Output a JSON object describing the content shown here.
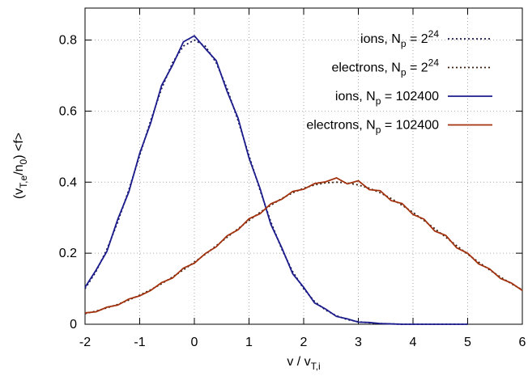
{
  "chart_data": {
    "type": "line",
    "xlabel": "v / v_{T,i}",
    "ylabel": "(v_{T,e}/n_0) <f>",
    "xlim": [
      -2,
      6
    ],
    "ylim": [
      0,
      0.89
    ],
    "xticks": [
      -2,
      -1,
      0,
      1,
      2,
      3,
      4,
      5,
      6
    ],
    "yticks": [
      0,
      0.2,
      0.4,
      0.6,
      0.8
    ],
    "grid": true,
    "legend": "top-right",
    "series": [
      {
        "name": "ions, N_p = 2^{24}",
        "color": "#141450",
        "style": "dotted",
        "x": [
          -2,
          -1.8,
          -1.6,
          -1.4,
          -1.2,
          -1,
          -0.8,
          -0.6,
          -0.4,
          -0.2,
          0,
          0.2,
          0.4,
          0.6,
          0.8,
          1,
          1.2,
          1.4,
          1.6,
          1.8,
          2,
          2.2,
          2.4,
          2.6,
          2.8,
          3,
          3.2,
          3.4,
          3.6,
          3.8,
          4,
          4.2,
          4.4,
          4.6,
          4.8,
          5
        ],
        "values": [
          0.1,
          0.148,
          0.211,
          0.288,
          0.378,
          0.475,
          0.573,
          0.663,
          0.736,
          0.783,
          0.8,
          0.783,
          0.736,
          0.663,
          0.573,
          0.475,
          0.378,
          0.288,
          0.211,
          0.148,
          0.1,
          0.064,
          0.04,
          0.024,
          0.013,
          0.007,
          0.004,
          0.002,
          0.001,
          0,
          0,
          0,
          0,
          0,
          0,
          0
        ]
      },
      {
        "name": "electrons, N_p = 2^{24}",
        "color": "#3a1c0c",
        "style": "dotted",
        "x": [
          -2,
          -1.8,
          -1.6,
          -1.4,
          -1.2,
          -1,
          -0.8,
          -0.6,
          -0.4,
          -0.2,
          0,
          0.2,
          0.4,
          0.6,
          0.8,
          1,
          1.2,
          1.4,
          1.6,
          1.8,
          2,
          2.2,
          2.4,
          2.6,
          2.8,
          3,
          3.2,
          3.4,
          3.6,
          3.8,
          4,
          4.2,
          4.4,
          4.6,
          4.8,
          5,
          5.2,
          5.4,
          5.6,
          5.8,
          6
        ],
        "values": [
          0.03,
          0.037,
          0.046,
          0.056,
          0.068,
          0.082,
          0.097,
          0.114,
          0.133,
          0.153,
          0.175,
          0.197,
          0.221,
          0.245,
          0.269,
          0.292,
          0.315,
          0.335,
          0.354,
          0.37,
          0.383,
          0.392,
          0.398,
          0.4,
          0.398,
          0.392,
          0.383,
          0.37,
          0.354,
          0.335,
          0.315,
          0.292,
          0.269,
          0.245,
          0.221,
          0.197,
          0.175,
          0.153,
          0.133,
          0.114,
          0.097
        ]
      },
      {
        "name": "ions, N_p = 102400",
        "color": "#1c1c8c",
        "style": "solid",
        "x": [
          -2,
          -1.8,
          -1.6,
          -1.4,
          -1.2,
          -1,
          -0.8,
          -0.6,
          -0.4,
          -0.2,
          0,
          0.2,
          0.4,
          0.6,
          0.8,
          1,
          1.2,
          1.4,
          1.6,
          1.8,
          2,
          2.2,
          2.4,
          2.6,
          2.8,
          3,
          3.2,
          3.4,
          3.6,
          3.8,
          4,
          4.2,
          4.4,
          4.6,
          4.8,
          5
        ],
        "values": [
          0.104,
          0.152,
          0.205,
          0.296,
          0.372,
          0.481,
          0.566,
          0.672,
          0.729,
          0.795,
          0.812,
          0.776,
          0.742,
          0.655,
          0.58,
          0.468,
          0.383,
          0.281,
          0.215,
          0.142,
          0.104,
          0.06,
          0.043,
          0.022,
          0.015,
          0.006,
          0.005,
          0.002,
          0.001,
          0,
          0,
          0,
          0,
          0,
          0,
          0
        ]
      },
      {
        "name": "electrons, N_p = 102400",
        "color": "#a3320f",
        "style": "solid",
        "x": [
          -2,
          -1.8,
          -1.6,
          -1.4,
          -1.2,
          -1,
          -0.8,
          -0.6,
          -0.4,
          -0.2,
          0,
          0.2,
          0.4,
          0.6,
          0.8,
          1,
          1.2,
          1.4,
          1.6,
          1.8,
          2,
          2.2,
          2.4,
          2.6,
          2.8,
          3,
          3.2,
          3.4,
          3.6,
          3.8,
          4,
          4.2,
          4.4,
          4.6,
          4.8,
          5,
          5.2,
          5.4,
          5.6,
          5.8,
          6
        ],
        "values": [
          0.032,
          0.035,
          0.048,
          0.054,
          0.071,
          0.08,
          0.095,
          0.117,
          0.13,
          0.158,
          0.172,
          0.199,
          0.218,
          0.249,
          0.266,
          0.297,
          0.311,
          0.339,
          0.352,
          0.374,
          0.38,
          0.396,
          0.401,
          0.412,
          0.395,
          0.404,
          0.379,
          0.376,
          0.348,
          0.34,
          0.309,
          0.296,
          0.262,
          0.25,
          0.215,
          0.2,
          0.17,
          0.156,
          0.129,
          0.116,
          0.095
        ]
      }
    ]
  }
}
